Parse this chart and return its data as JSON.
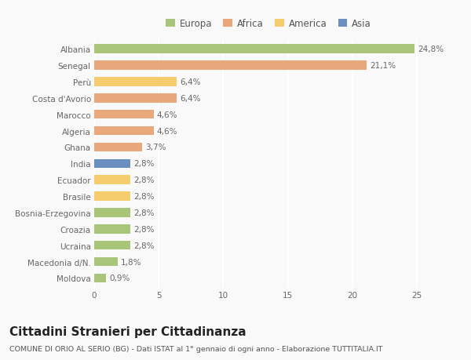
{
  "categories": [
    "Albania",
    "Senegal",
    "Perù",
    "Costa d'Avorio",
    "Marocco",
    "Algeria",
    "Ghana",
    "India",
    "Ecuador",
    "Brasile",
    "Bosnia-Erzegovina",
    "Croazia",
    "Ucraina",
    "Macedonia d/N.",
    "Moldova"
  ],
  "values": [
    24.8,
    21.1,
    6.4,
    6.4,
    4.6,
    4.6,
    3.7,
    2.8,
    2.8,
    2.8,
    2.8,
    2.8,
    2.8,
    1.8,
    0.9
  ],
  "labels": [
    "24,8%",
    "21,1%",
    "6,4%",
    "6,4%",
    "4,6%",
    "4,6%",
    "3,7%",
    "2,8%",
    "2,8%",
    "2,8%",
    "2,8%",
    "2,8%",
    "2,8%",
    "1,8%",
    "0,9%"
  ],
  "colors": [
    "#a8c57a",
    "#e8a87c",
    "#f5cc6e",
    "#e8a87c",
    "#e8a87c",
    "#e8a87c",
    "#e8a87c",
    "#6b8fbf",
    "#f5cc6e",
    "#f5cc6e",
    "#a8c57a",
    "#a8c57a",
    "#a8c57a",
    "#a8c57a",
    "#a8c57a"
  ],
  "continent_labels": [
    "Europa",
    "Africa",
    "America",
    "Asia"
  ],
  "continent_colors": [
    "#a8c57a",
    "#e8a87c",
    "#f5cc6e",
    "#6b8fbf"
  ],
  "title": "Cittadini Stranieri per Cittadinanza",
  "subtitle": "COMUNE DI ORIO AL SERIO (BG) - Dati ISTAT al 1° gennaio di ogni anno - Elaborazione TUTTITALIA.IT",
  "xlim": [
    0,
    27
  ],
  "xticks": [
    0,
    5,
    10,
    15,
    20,
    25
  ],
  "bg_color": "#f9f9f9",
  "grid_color": "#ffffff",
  "bar_height": 0.55,
  "label_fontsize": 7.5,
  "tick_fontsize": 7.5,
  "legend_fontsize": 8.5,
  "title_fontsize": 11,
  "subtitle_fontsize": 6.8
}
